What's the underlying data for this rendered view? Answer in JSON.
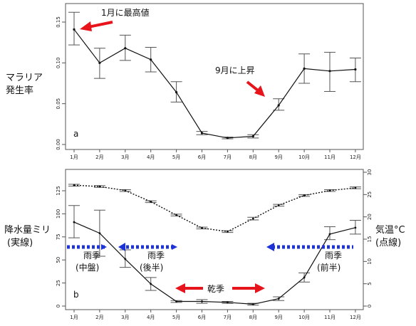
{
  "chart_data": [
    {
      "type": "line",
      "panel_label": "a",
      "categories": [
        "1月",
        "2月",
        "3月",
        "4月",
        "5月",
        "6月",
        "7月",
        "8月",
        "9月",
        "10月",
        "11月",
        "12月"
      ],
      "ylabel": [
        "マラリア",
        "発生率"
      ],
      "ylim": [
        0,
        0.165
      ],
      "yticks": [
        "0.00",
        "0.05",
        "0.10",
        "0.15"
      ],
      "series": [
        {
          "values": [
            0.141,
            0.1,
            0.118,
            0.104,
            0.064,
            0.014,
            0.008,
            0.01,
            0.048,
            0.093,
            0.09,
            0.092
          ],
          "err_low": [
            0.122,
            0.081,
            0.103,
            0.089,
            0.052,
            0.012,
            0.007,
            0.008,
            0.042,
            0.075,
            0.065,
            0.077
          ],
          "err_high": [
            0.162,
            0.118,
            0.134,
            0.119,
            0.077,
            0.016,
            0.009,
            0.012,
            0.056,
            0.111,
            0.113,
            0.106
          ]
        }
      ],
      "annotations": [
        {
          "text": "1月に最高値",
          "target_month": "1月"
        },
        {
          "text": "9月に上昇",
          "target_month": "9月"
        }
      ],
      "grid": false
    },
    {
      "type": "line",
      "panel_label": "b",
      "categories": [
        "1月",
        "2月",
        "3月",
        "4月",
        "5月",
        "6月",
        "7月",
        "8月",
        "9月",
        "10月",
        "11月",
        "12月"
      ],
      "ylabel_left": [
        "降水量ミリ",
        "(実線)"
      ],
      "ylabel_right": [
        "気温°C",
        "(点線)"
      ],
      "ylim_left": [
        0,
        137
      ],
      "yticks_left": [
        "0",
        "25",
        "50",
        "75",
        "100",
        "125"
      ],
      "ylim_right": [
        0,
        30
      ],
      "yticks_right": [
        "0",
        "5",
        "10",
        "15",
        "20",
        "25",
        "30"
      ],
      "series": [
        {
          "name": "降水量",
          "axis": "left",
          "style": "solid",
          "values": [
            91,
            79,
            51,
            24,
            5,
            5,
            4,
            2,
            8,
            31,
            78,
            85
          ],
          "err_low": [
            74,
            54,
            42,
            17,
            4,
            3,
            3,
            1,
            6,
            26,
            72,
            78
          ],
          "err_high": [
            109,
            104,
            61,
            31,
            6,
            7,
            5,
            3,
            10,
            36,
            86,
            93
          ]
        },
        {
          "name": "気温",
          "axis": "right",
          "style": "dotted",
          "values": [
            27.1,
            26.8,
            25.9,
            23.4,
            20.4,
            17.5,
            16.7,
            19.6,
            22.6,
            24.8,
            25.9,
            26.5
          ],
          "err_low": [
            26.9,
            26.6,
            25.7,
            23.2,
            20.2,
            17.3,
            16.5,
            19.3,
            22.4,
            24.6,
            25.7,
            26.3
          ],
          "err_high": [
            27.3,
            27.0,
            26.1,
            23.6,
            20.6,
            17.7,
            16.9,
            19.9,
            22.8,
            25.0,
            26.1,
            26.7
          ]
        }
      ],
      "annotations": [
        {
          "text": [
            "雨季",
            "(中盤)"
          ]
        },
        {
          "text": [
            "雨季",
            "(後半)"
          ]
        },
        {
          "text": "乾季"
        },
        {
          "text": [
            "雨季",
            "(前半)"
          ]
        }
      ],
      "colors": {
        "arrow_red": "#e8141b",
        "arrow_blue": "#1d33d6"
      },
      "grid": false
    }
  ]
}
